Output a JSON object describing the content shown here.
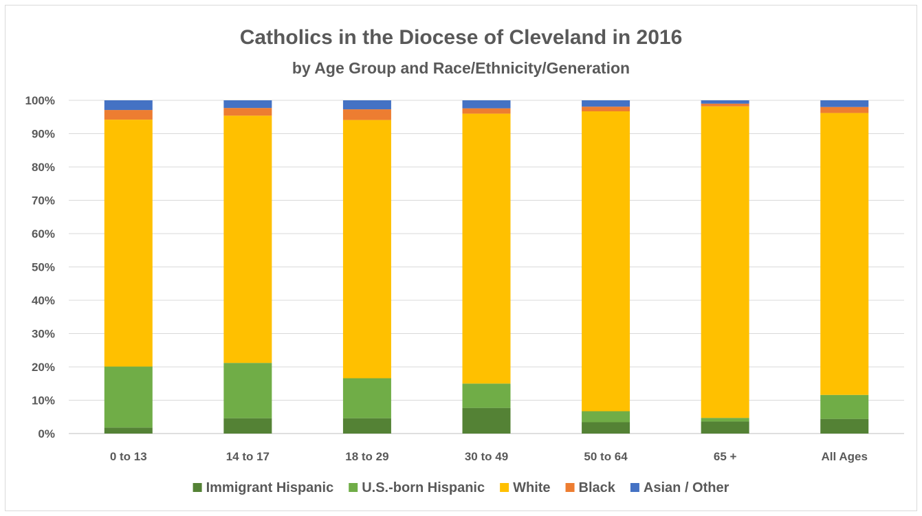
{
  "chart_data": {
    "type": "bar",
    "stacked": true,
    "title": "Catholics in the Diocese of Cleveland in 2016",
    "subtitle": "by Age Group and Race/Ethnicity/Generation",
    "categories": [
      "0 to 13",
      "14 to 17",
      "18 to 29",
      "30 to 49",
      "50 to 64",
      "65 +",
      "All Ages"
    ],
    "y_ticks": [
      "0%",
      "10%",
      "20%",
      "30%",
      "40%",
      "50%",
      "60%",
      "70%",
      "80%",
      "90%",
      "100%"
    ],
    "ylim": [
      0,
      100
    ],
    "grid": true,
    "legend_position": "bottom",
    "series": [
      {
        "name": "Immigrant Hispanic",
        "color": "#548235",
        "values": [
          1.8,
          4.6,
          4.6,
          7.7,
          3.4,
          3.6,
          4.4
        ]
      },
      {
        "name": "U.S.-born Hispanic",
        "color": "#70ad47",
        "values": [
          18.3,
          16.6,
          12.0,
          7.3,
          3.3,
          1.1,
          7.2
        ]
      },
      {
        "name": "White",
        "color": "#ffc000",
        "values": [
          74.1,
          74.2,
          77.5,
          81.0,
          90.0,
          93.5,
          84.6
        ]
      },
      {
        "name": "Black",
        "color": "#ed7d31",
        "values": [
          2.9,
          2.3,
          3.2,
          1.6,
          1.4,
          0.8,
          1.8
        ]
      },
      {
        "name": "Asian / Other",
        "color": "#4472c4",
        "values": [
          2.9,
          2.3,
          2.7,
          2.4,
          1.9,
          1.0,
          2.0
        ]
      }
    ]
  }
}
